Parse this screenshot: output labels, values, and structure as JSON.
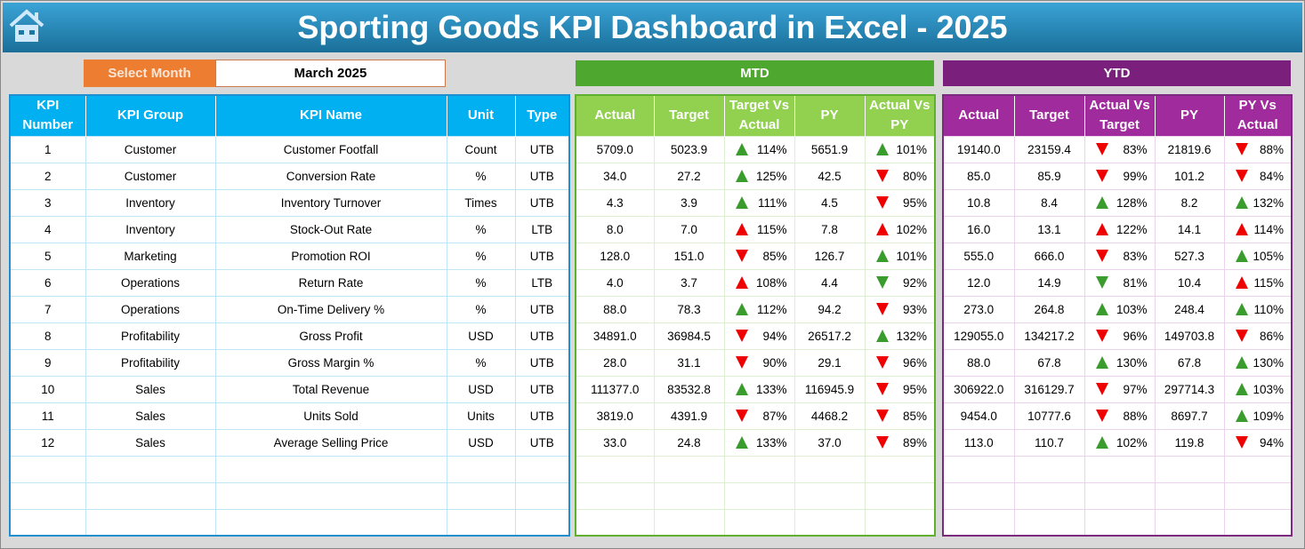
{
  "title": "Sporting Goods KPI Dashboard in Excel - 2025",
  "select_month_label": "Select Month",
  "selected_month": "March 2025",
  "mtd_label": "MTD",
  "ytd_label": "YTD",
  "kpi_headers": [
    "KPI Number",
    "KPI Group",
    "KPI Name",
    "Unit",
    "Type"
  ],
  "mtd_headers": [
    "Actual",
    "Target",
    "Target Vs Actual",
    "PY",
    "Actual Vs PY"
  ],
  "ytd_headers": [
    "Actual",
    "Target",
    "Actual Vs Target",
    "PY",
    "PY Vs Actual"
  ],
  "colors": {
    "up_good": "#3a9c2c",
    "bad": "#e00000"
  },
  "rows": [
    {
      "n": "1",
      "g": "Customer",
      "k": "Customer Footfall",
      "u": "Count",
      "t": "UTB",
      "mtd": [
        "5709.0",
        "5023.9",
        [
          "114%",
          "ug"
        ],
        "5651.9",
        [
          "101%",
          "ug"
        ]
      ],
      "ytd": [
        "19140.0",
        "23159.4",
        [
          "83%",
          "dr"
        ],
        "21819.6",
        [
          "88%",
          "dr"
        ]
      ]
    },
    {
      "n": "2",
      "g": "Customer",
      "k": "Conversion Rate",
      "u": "%",
      "t": "UTB",
      "mtd": [
        "34.0",
        "27.2",
        [
          "125%",
          "ug"
        ],
        "42.5",
        [
          "80%",
          "dr"
        ]
      ],
      "ytd": [
        "85.0",
        "85.9",
        [
          "99%",
          "dr"
        ],
        "101.2",
        [
          "84%",
          "dr"
        ]
      ]
    },
    {
      "n": "3",
      "g": "Inventory",
      "k": "Inventory Turnover",
      "u": "Times",
      "t": "UTB",
      "mtd": [
        "4.3",
        "3.9",
        [
          "111%",
          "ug"
        ],
        "4.5",
        [
          "95%",
          "dr"
        ]
      ],
      "ytd": [
        "10.8",
        "8.4",
        [
          "128%",
          "ug"
        ],
        "8.2",
        [
          "132%",
          "ug"
        ]
      ]
    },
    {
      "n": "4",
      "g": "Inventory",
      "k": "Stock-Out Rate",
      "u": "%",
      "t": "LTB",
      "mtd": [
        "8.0",
        "7.0",
        [
          "115%",
          "ur"
        ],
        "7.8",
        [
          "102%",
          "ur"
        ]
      ],
      "ytd": [
        "16.0",
        "13.1",
        [
          "122%",
          "ur"
        ],
        "14.1",
        [
          "114%",
          "ur"
        ]
      ]
    },
    {
      "n": "5",
      "g": "Marketing",
      "k": "Promotion ROI",
      "u": "%",
      "t": "UTB",
      "mtd": [
        "128.0",
        "151.0",
        [
          "85%",
          "dr"
        ],
        "126.7",
        [
          "101%",
          "ug"
        ]
      ],
      "ytd": [
        "555.0",
        "666.0",
        [
          "83%",
          "dr"
        ],
        "527.3",
        [
          "105%",
          "ug"
        ]
      ]
    },
    {
      "n": "6",
      "g": "Operations",
      "k": "Return Rate",
      "u": "%",
      "t": "LTB",
      "mtd": [
        "4.0",
        "3.7",
        [
          "108%",
          "ur"
        ],
        "4.4",
        [
          "92%",
          "dg"
        ]
      ],
      "ytd": [
        "12.0",
        "14.9",
        [
          "81%",
          "dg"
        ],
        "10.4",
        [
          "115%",
          "ur"
        ]
      ]
    },
    {
      "n": "7",
      "g": "Operations",
      "k": "On-Time Delivery %",
      "u": "%",
      "t": "UTB",
      "mtd": [
        "88.0",
        "78.3",
        [
          "112%",
          "ug"
        ],
        "94.2",
        [
          "93%",
          "dr"
        ]
      ],
      "ytd": [
        "273.0",
        "264.8",
        [
          "103%",
          "ug"
        ],
        "248.4",
        [
          "110%",
          "ug"
        ]
      ]
    },
    {
      "n": "8",
      "g": "Profitability",
      "k": "Gross Profit",
      "u": "USD",
      "t": "UTB",
      "mtd": [
        "34891.0",
        "36984.5",
        [
          "94%",
          "dr"
        ],
        "26517.2",
        [
          "132%",
          "ug"
        ]
      ],
      "ytd": [
        "129055.0",
        "134217.2",
        [
          "96%",
          "dr"
        ],
        "149703.8",
        [
          "86%",
          "dr"
        ]
      ]
    },
    {
      "n": "9",
      "g": "Profitability",
      "k": "Gross Margin %",
      "u": "%",
      "t": "UTB",
      "mtd": [
        "28.0",
        "31.1",
        [
          "90%",
          "dr"
        ],
        "29.1",
        [
          "96%",
          "dr"
        ]
      ],
      "ytd": [
        "88.0",
        "67.8",
        [
          "130%",
          "ug"
        ],
        "67.8",
        [
          "130%",
          "ug"
        ]
      ]
    },
    {
      "n": "10",
      "g": "Sales",
      "k": "Total Revenue",
      "u": "USD",
      "t": "UTB",
      "mtd": [
        "111377.0",
        "83532.8",
        [
          "133%",
          "ug"
        ],
        "116945.9",
        [
          "95%",
          "dr"
        ]
      ],
      "ytd": [
        "306922.0",
        "316129.7",
        [
          "97%",
          "dr"
        ],
        "297714.3",
        [
          "103%",
          "ug"
        ]
      ]
    },
    {
      "n": "11",
      "g": "Sales",
      "k": "Units Sold",
      "u": "Units",
      "t": "UTB",
      "mtd": [
        "3819.0",
        "4391.9",
        [
          "87%",
          "dr"
        ],
        "4468.2",
        [
          "85%",
          "dr"
        ]
      ],
      "ytd": [
        "9454.0",
        "10777.6",
        [
          "88%",
          "dr"
        ],
        "8697.7",
        [
          "109%",
          "ug"
        ]
      ]
    },
    {
      "n": "12",
      "g": "Sales",
      "k": "Average Selling Price",
      "u": "USD",
      "t": "UTB",
      "mtd": [
        "33.0",
        "24.8",
        [
          "133%",
          "ug"
        ],
        "37.0",
        [
          "89%",
          "dr"
        ]
      ],
      "ytd": [
        "113.0",
        "110.7",
        [
          "102%",
          "ug"
        ],
        "119.8",
        [
          "94%",
          "dr"
        ]
      ]
    }
  ]
}
